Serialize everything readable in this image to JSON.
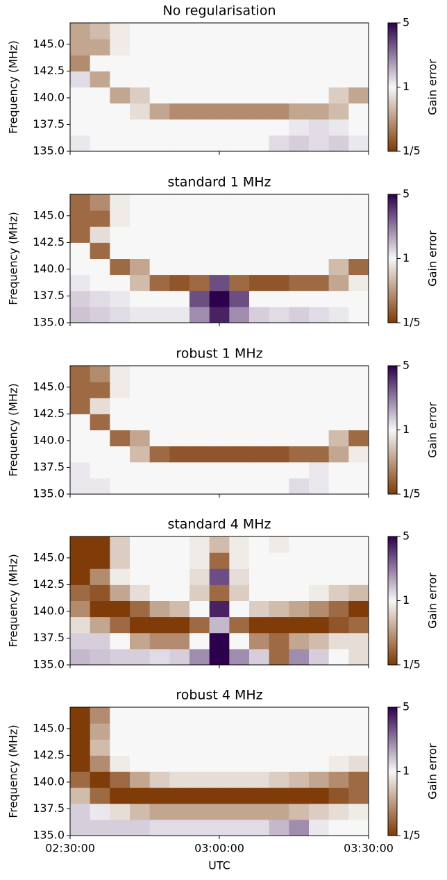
{
  "chart_data": [
    {
      "type": "heatmap",
      "title": "No regularisation",
      "ylabel": "Frequency (MHz)",
      "ylim": [
        135,
        147
      ],
      "yticks": [
        135.0,
        137.5,
        140.0,
        142.5,
        145.0
      ],
      "xlim": [
        "02:30:00",
        "03:30:00"
      ],
      "xticks": [
        "02:30:00",
        "03:00:00",
        "03:30:00"
      ],
      "show_xtick_labels": false,
      "colorbar": {
        "label": "Gain error",
        "scale": "log",
        "lim": [
          0.2,
          5
        ],
        "ticks": [
          {
            "value": 0.2,
            "label": "1/5"
          },
          1,
          5
        ],
        "colors": [
          "#7f3b08",
          "#f7f7f7",
          "#2d004b"
        ]
      },
      "z": [
        [
          1.1,
          1,
          1,
          1,
          1,
          1,
          1,
          1,
          1,
          1,
          1.2,
          1.3,
          1.2,
          1.3,
          1.1
        ],
        [
          1,
          1,
          1,
          1,
          1,
          1,
          1,
          1,
          1,
          1,
          1,
          1.1,
          1.2,
          1.1,
          1
        ],
        [
          1,
          1,
          1,
          0.8,
          0.5,
          0.4,
          0.4,
          0.4,
          0.4,
          0.4,
          0.4,
          0.5,
          0.5,
          0.6,
          1
        ],
        [
          1,
          1,
          0.5,
          0.7,
          1,
          1,
          1,
          1,
          1,
          1,
          1,
          1,
          1,
          0.7,
          0.5
        ],
        [
          1.2,
          0.5,
          1,
          1,
          1,
          1,
          1,
          1,
          1,
          1,
          1,
          1,
          1,
          1,
          1
        ],
        [
          0.4,
          1,
          1,
          1,
          1,
          1,
          1,
          1,
          1,
          1,
          1,
          1,
          1,
          1,
          1
        ],
        [
          0.5,
          0.5,
          0.9,
          1,
          1,
          1,
          1,
          1,
          1,
          1,
          1,
          1,
          1,
          1,
          1
        ],
        [
          0.5,
          0.6,
          0.9,
          1,
          1,
          1,
          1,
          1,
          1,
          1,
          1,
          1,
          1,
          1,
          1
        ]
      ]
    },
    {
      "type": "heatmap",
      "title": "standard 1 MHz",
      "ylabel": "Frequency (MHz)",
      "ylim": [
        135,
        147
      ],
      "yticks": [
        135.0,
        137.5,
        140.0,
        142.5,
        145.0
      ],
      "xlim": [
        "02:30:00",
        "03:30:00"
      ],
      "xticks": [
        "02:30:00",
        "03:00:00",
        "03:30:00"
      ],
      "show_xtick_labels": false,
      "colorbar": {
        "label": "Gain error",
        "scale": "log",
        "lim": [
          0.2,
          5
        ],
        "ticks": [
          {
            "value": 0.2,
            "label": "1/5"
          },
          1,
          5
        ],
        "colors": [
          "#7f3b08",
          "#f7f7f7",
          "#2d004b"
        ]
      },
      "z": [
        [
          1.4,
          1.3,
          1.2,
          1.1,
          1.1,
          1.1,
          2,
          4,
          2,
          1.3,
          1.2,
          1.3,
          1.2,
          1.1,
          1
        ],
        [
          1.3,
          1.2,
          1.1,
          1,
          1,
          1,
          3,
          5,
          3,
          1,
          1,
          1,
          1,
          1,
          1
        ],
        [
          1.1,
          1,
          1,
          0.6,
          0.3,
          0.25,
          0.3,
          3,
          0.3,
          0.25,
          0.25,
          0.3,
          0.3,
          0.5,
          0.9
        ],
        [
          1,
          1,
          0.3,
          0.5,
          1,
          1,
          1,
          1,
          1,
          1,
          1,
          1,
          1,
          0.6,
          0.3
        ],
        [
          1,
          0.3,
          1,
          1,
          1,
          1,
          1,
          1,
          1,
          1,
          1,
          1,
          1,
          1,
          1
        ],
        [
          0.3,
          0.8,
          1,
          1,
          1,
          1,
          1,
          1,
          1,
          1,
          1,
          1,
          1,
          1,
          1
        ],
        [
          0.3,
          0.3,
          0.9,
          1,
          1,
          1,
          1,
          1,
          1,
          1,
          1,
          1,
          1,
          1,
          1
        ],
        [
          0.3,
          0.4,
          0.9,
          1,
          1,
          1,
          1,
          1,
          1,
          1,
          1,
          1,
          1,
          1,
          1
        ]
      ]
    },
    {
      "type": "heatmap",
      "title": "robust 1 MHz",
      "ylabel": "Frequency (MHz)",
      "ylim": [
        135,
        147
      ],
      "yticks": [
        135.0,
        137.5,
        140.0,
        142.5,
        145.0
      ],
      "xlim": [
        "02:30:00",
        "03:30:00"
      ],
      "xticks": [
        "02:30:00",
        "03:00:00",
        "03:30:00"
      ],
      "show_xtick_labels": false,
      "colorbar": {
        "label": "Gain error",
        "scale": "log",
        "lim": [
          0.2,
          5
        ],
        "ticks": [
          {
            "value": 0.2,
            "label": "1/5"
          },
          1,
          5
        ],
        "colors": [
          "#7f3b08",
          "#f7f7f7",
          "#2d004b"
        ]
      },
      "z": [
        [
          1.1,
          1.1,
          1,
          1,
          1,
          1,
          1,
          1,
          1,
          1,
          1,
          1.2,
          1.1,
          1,
          1
        ],
        [
          1.1,
          1,
          1,
          1,
          1,
          1,
          1,
          1,
          1,
          1,
          1,
          1,
          1.1,
          1,
          1
        ],
        [
          1,
          1,
          1,
          0.6,
          0.3,
          0.25,
          0.25,
          0.25,
          0.25,
          0.25,
          0.25,
          0.3,
          0.3,
          0.5,
          0.9
        ],
        [
          1,
          1,
          0.3,
          0.5,
          1,
          1,
          1,
          1,
          1,
          1,
          1,
          1,
          1,
          0.6,
          0.3
        ],
        [
          1,
          0.3,
          1,
          1,
          1,
          1,
          1,
          1,
          1,
          1,
          1,
          1,
          1,
          1,
          1
        ],
        [
          0.3,
          0.8,
          1,
          1,
          1,
          1,
          1,
          1,
          1,
          1,
          1,
          1,
          1,
          1,
          1
        ],
        [
          0.3,
          0.3,
          0.9,
          1,
          1,
          1,
          1,
          1,
          1,
          1,
          1,
          1,
          1,
          1,
          1
        ],
        [
          0.3,
          0.4,
          0.9,
          1,
          1,
          1,
          1,
          1,
          1,
          1,
          1,
          1,
          1,
          1,
          1
        ]
      ]
    },
    {
      "type": "heatmap",
      "title": "standard 4 MHz",
      "ylabel": "Frequency (MHz)",
      "ylim": [
        135,
        147
      ],
      "yticks": [
        135.0,
        137.5,
        140.0,
        142.5,
        145.0
      ],
      "xlim": [
        "02:30:00",
        "03:30:00"
      ],
      "xticks": [
        "02:30:00",
        "03:00:00",
        "03:30:00"
      ],
      "show_xtick_labels": false,
      "colorbar": {
        "label": "Gain error",
        "scale": "log",
        "lim": [
          0.2,
          5
        ],
        "ticks": [
          {
            "value": 0.2,
            "label": "1/5"
          },
          1,
          5
        ],
        "colors": [
          "#7f3b08",
          "#f7f7f7",
          "#2d004b"
        ]
      },
      "z": [
        [
          1.5,
          1.4,
          1.3,
          1.3,
          1.2,
          1.3,
          2,
          5,
          2,
          1.3,
          0.3,
          2,
          1.3,
          1,
          0.8
        ],
        [
          1.3,
          1.3,
          1,
          0.5,
          0.4,
          0.4,
          1,
          5,
          1,
          0.4,
          0.3,
          0.5,
          0.6,
          0.8,
          0.8
        ],
        [
          0.8,
          0.5,
          0.3,
          0.2,
          0.2,
          0.2,
          0.3,
          1.5,
          0.3,
          0.2,
          0.2,
          0.2,
          0.2,
          0.25,
          0.3
        ],
        [
          0.4,
          0.2,
          0.2,
          0.3,
          0.5,
          0.6,
          1,
          4,
          1,
          0.7,
          0.6,
          0.5,
          0.4,
          0.3,
          0.2
        ],
        [
          0.3,
          0.25,
          0.5,
          0.8,
          1,
          1,
          0.7,
          0.3,
          0.7,
          1,
          1,
          1,
          0.9,
          0.7,
          0.6
        ],
        [
          0.2,
          0.4,
          0.9,
          1,
          1,
          1,
          0.8,
          3,
          0.8,
          1,
          1,
          1,
          1,
          1,
          1
        ],
        [
          0.2,
          0.2,
          0.7,
          1,
          1,
          1,
          0.9,
          0.3,
          0.9,
          1,
          1,
          1,
          1,
          1,
          1
        ],
        [
          0.2,
          0.2,
          0.7,
          1,
          1,
          1,
          0.9,
          0.6,
          0.9,
          1,
          0.9,
          1,
          1,
          1,
          1
        ]
      ]
    },
    {
      "type": "heatmap",
      "title": "robust 4 MHz",
      "ylabel": "Frequency (MHz)",
      "xlabel": "UTC",
      "ylim": [
        135,
        147
      ],
      "yticks": [
        135.0,
        137.5,
        140.0,
        142.5,
        145.0
      ],
      "xlim": [
        "02:30:00",
        "03:30:00"
      ],
      "xticks": [
        "02:30:00",
        "03:00:00",
        "03:30:00"
      ],
      "show_xtick_labels": true,
      "colorbar": {
        "label": "Gain error",
        "scale": "log",
        "lim": [
          0.2,
          5
        ],
        "ticks": [
          {
            "value": 0.2,
            "label": "1/5"
          },
          1,
          5
        ],
        "colors": [
          "#7f3b08",
          "#f7f7f7",
          "#2d004b"
        ]
      },
      "z": [
        [
          1.3,
          1.3,
          1.3,
          1.3,
          1.2,
          1.2,
          1.2,
          1.2,
          1.2,
          1.2,
          1.5,
          2,
          1.1,
          1,
          1
        ],
        [
          1.3,
          1.1,
          0.8,
          0.6,
          0.5,
          0.5,
          0.5,
          0.5,
          0.5,
          0.5,
          0.5,
          0.6,
          0.7,
          0.8,
          0.9
        ],
        [
          0.6,
          0.3,
          0.2,
          0.2,
          0.2,
          0.2,
          0.2,
          0.2,
          0.2,
          0.2,
          0.2,
          0.2,
          0.2,
          0.25,
          0.3
        ],
        [
          0.3,
          0.2,
          0.3,
          0.5,
          0.7,
          0.8,
          0.8,
          0.8,
          0.8,
          0.8,
          0.7,
          0.6,
          0.5,
          0.4,
          0.3
        ],
        [
          0.2,
          0.4,
          0.9,
          1,
          1,
          1,
          1,
          1,
          1,
          1,
          1,
          1,
          1,
          0.9,
          0.8
        ],
        [
          0.2,
          0.6,
          1,
          1,
          1,
          1,
          1,
          1,
          1,
          1,
          1,
          1,
          1,
          1,
          1
        ],
        [
          0.2,
          0.5,
          1,
          1,
          1,
          1,
          1,
          1,
          1,
          1,
          1,
          1,
          1,
          1,
          1
        ],
        [
          0.2,
          0.4,
          1,
          1,
          1,
          1,
          1,
          1,
          1,
          1,
          1,
          1,
          1,
          1,
          1
        ]
      ]
    }
  ]
}
